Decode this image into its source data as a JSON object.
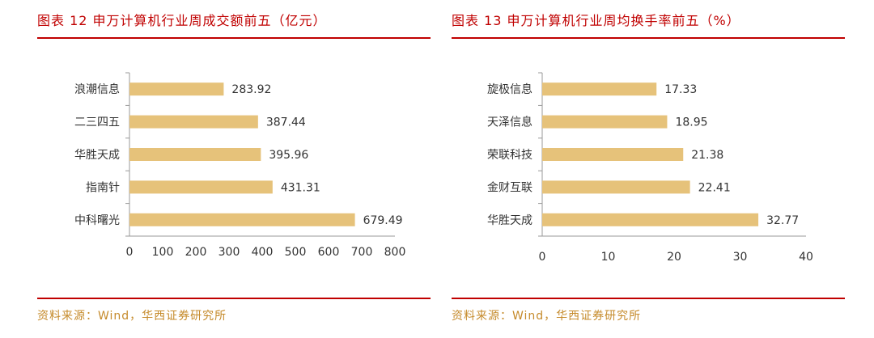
{
  "colors": {
    "accent": "#c00000",
    "bar": "#e6c27a",
    "source": "#c58a2a"
  },
  "left": {
    "title": "图表 12 申万计算机行业周成交额前五（亿元）",
    "source": "资料来源：Wind，华西证券研究所"
  },
  "right": {
    "title": "图表 13 申万计算机行业周均换手率前五（%）",
    "source": "资料来源：Wind，华西证券研究所"
  },
  "chart_data": [
    {
      "type": "bar",
      "orientation": "horizontal",
      "title": "图表 12 申万计算机行业周成交额前五（亿元）",
      "categories": [
        "浪潮信息",
        "二三四五",
        "华胜天成",
        "指南针",
        "中科曙光"
      ],
      "values": [
        283.92,
        387.44,
        395.96,
        431.31,
        679.49
      ],
      "value_labels": [
        "283.92",
        "387.44",
        "395.96",
        "431.31",
        "679.49"
      ],
      "xlim": [
        0,
        800
      ],
      "ticks": [
        0,
        100,
        200,
        300,
        400,
        500,
        600,
        700,
        800
      ],
      "tick_labels": [
        "0",
        "100",
        "200",
        "300",
        "400",
        "500",
        "600",
        "700",
        "800"
      ],
      "grid": false,
      "legend": "none"
    },
    {
      "type": "bar",
      "orientation": "horizontal",
      "title": "图表 13 申万计算机行业周均换手率前五（%）",
      "categories": [
        "旋极信息",
        "天泽信息",
        "荣联科技",
        "金财互联",
        "华胜天成"
      ],
      "values": [
        17.33,
        18.95,
        21.38,
        22.41,
        32.77
      ],
      "value_labels": [
        "17.33",
        "18.95",
        "21.38",
        "22.41",
        "32.77"
      ],
      "xlim": [
        0,
        40
      ],
      "ticks": [
        0,
        10,
        20,
        30,
        40
      ],
      "tick_labels": [
        "0",
        "10",
        "20",
        "30",
        "40"
      ],
      "grid": false,
      "legend": "none"
    }
  ]
}
